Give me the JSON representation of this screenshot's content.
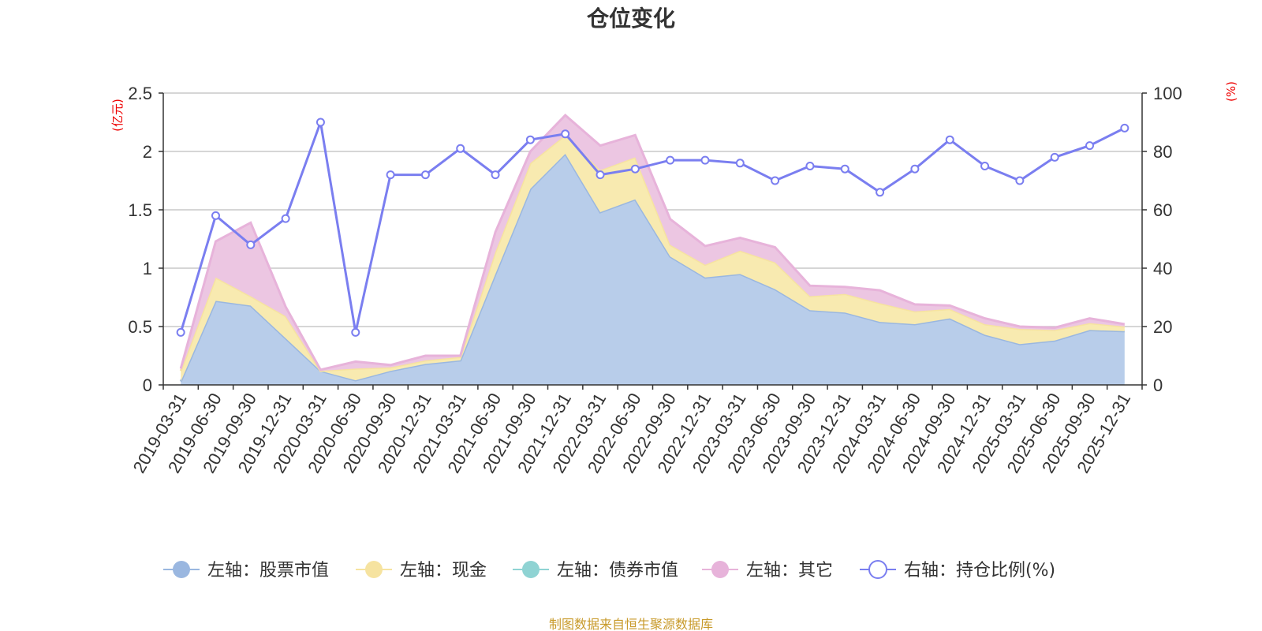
{
  "chart_data": {
    "type": "area",
    "title": "仓位变化",
    "left_unit": "(亿元)",
    "right_unit": "(%)",
    "categories": [
      "2019-03-31",
      "2019-06-30",
      "2019-09-30",
      "2019-12-31",
      "2020-03-31",
      "2020-06-30",
      "2020-09-30",
      "2020-12-31",
      "2021-03-31",
      "2021-06-30",
      "2021-09-30",
      "2021-12-31",
      "2022-03-31",
      "2022-06-30",
      "2022-09-30",
      "2022-12-31",
      "2023-03-31",
      "2023-06-30",
      "2023-09-30",
      "2023-12-31",
      "2024-03-31",
      "2024-06-30",
      "2024-09-30",
      "2024-12-31",
      "2025-03-31",
      "2025-06-30",
      "2025-09-30",
      "2025-12-31"
    ],
    "left_axis": {
      "ylim": [
        0,
        2.5
      ],
      "ticks": [
        "0",
        "0.5",
        "1",
        "1.5",
        "2",
        "2.5"
      ],
      "tick_values": [
        0,
        0.5,
        1,
        1.5,
        2,
        2.5
      ]
    },
    "right_axis": {
      "ylim": [
        0,
        100
      ],
      "ticks": [
        "0",
        "20",
        "40",
        "60",
        "80",
        "100"
      ],
      "tick_values": [
        0,
        20,
        40,
        60,
        80,
        100
      ]
    },
    "series": [
      {
        "name": "左轴：股票市值",
        "axis": "left",
        "stack": true,
        "color": "#9ab7e0",
        "fill": "#b8cdea",
        "values": [
          0.03,
          0.72,
          0.68,
          0.4,
          0.12,
          0.04,
          0.12,
          0.18,
          0.21,
          0.95,
          1.68,
          1.98,
          1.48,
          1.59,
          1.1,
          0.92,
          0.95,
          0.82,
          0.64,
          0.62,
          0.54,
          0.52,
          0.57,
          0.43,
          0.35,
          0.38,
          0.47,
          0.46
        ]
      },
      {
        "name": "左轴：现金",
        "axis": "left",
        "stack": true,
        "color": "#f6e3a0",
        "fill": "#f8eab0",
        "values": [
          0.09,
          0.2,
          0.08,
          0.19,
          0.0,
          0.1,
          0.03,
          0.03,
          0.03,
          0.19,
          0.22,
          0.16,
          0.36,
          0.36,
          0.1,
          0.11,
          0.2,
          0.23,
          0.12,
          0.16,
          0.16,
          0.11,
          0.08,
          0.09,
          0.13,
          0.09,
          0.06,
          0.04
        ]
      },
      {
        "name": "左轴：债券市值",
        "axis": "left",
        "stack": true,
        "color": "#8fd3d3",
        "fill": "#a6dede",
        "values": [
          0,
          0,
          0,
          0,
          0,
          0,
          0,
          0,
          0,
          0,
          0,
          0,
          0,
          0,
          0,
          0,
          0,
          0,
          0,
          0,
          0,
          0,
          0,
          0,
          0,
          0,
          0,
          0
        ]
      },
      {
        "name": "左轴：其它",
        "axis": "left",
        "stack": true,
        "color": "#e7b3da",
        "fill": "#ecc6e2",
        "values": [
          0.02,
          0.31,
          0.63,
          0.08,
          0.01,
          0.06,
          0.02,
          0.04,
          0.01,
          0.17,
          0.1,
          0.17,
          0.21,
          0.19,
          0.22,
          0.16,
          0.11,
          0.13,
          0.09,
          0.06,
          0.11,
          0.06,
          0.03,
          0.05,
          0.02,
          0.02,
          0.04,
          0.02
        ]
      },
      {
        "name": "右轴：持仓比例(%)",
        "axis": "right",
        "type": "line",
        "color": "#7a7ef0",
        "values": [
          18,
          58,
          48,
          57,
          90,
          18,
          72,
          72,
          81,
          72,
          84,
          86,
          72,
          74,
          77,
          77,
          76,
          70,
          75,
          74,
          66,
          74,
          84,
          75,
          70,
          78,
          82,
          88
        ]
      }
    ],
    "legend": [
      "左轴：股票市值",
      "左轴：现金",
      "左轴：债券市值",
      "左轴：其它",
      "右轴：持仓比例(%)"
    ],
    "legend_position": "bottom",
    "grid": true
  },
  "source": "制图数据来自恒生聚源数据库"
}
